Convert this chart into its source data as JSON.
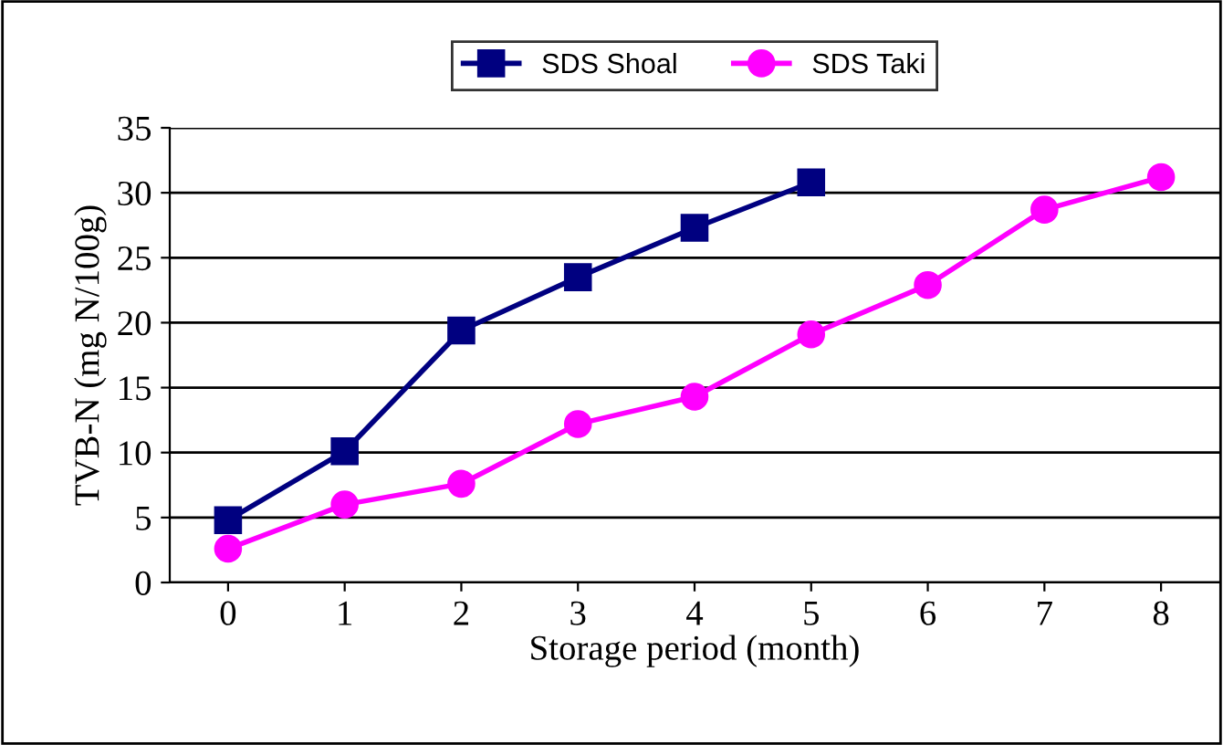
{
  "chart_data": {
    "type": "line",
    "xlabel": "Storage period (month)",
    "ylabel": "TVB-N (mg N/100g)",
    "categories": [
      "0",
      "1",
      "2",
      "3",
      "4",
      "5",
      "6",
      "7",
      "8"
    ],
    "series": [
      {
        "name": "SDS Shoal",
        "color": "#000080",
        "marker": "square",
        "values": [
          4.8,
          10.1,
          19.4,
          23.5,
          27.3,
          30.8,
          null,
          null,
          null
        ]
      },
      {
        "name": "SDS Taki",
        "color": "#ff00ff",
        "marker": "circle",
        "values": [
          2.6,
          6.0,
          7.6,
          12.2,
          14.3,
          19.1,
          22.9,
          28.7,
          31.2
        ]
      }
    ],
    "ylim": [
      0,
      35
    ],
    "yticks": [
      0,
      5,
      10,
      15,
      20,
      25,
      30,
      35
    ],
    "grid": "y",
    "legend": "top",
    "line_style": "solid"
  }
}
